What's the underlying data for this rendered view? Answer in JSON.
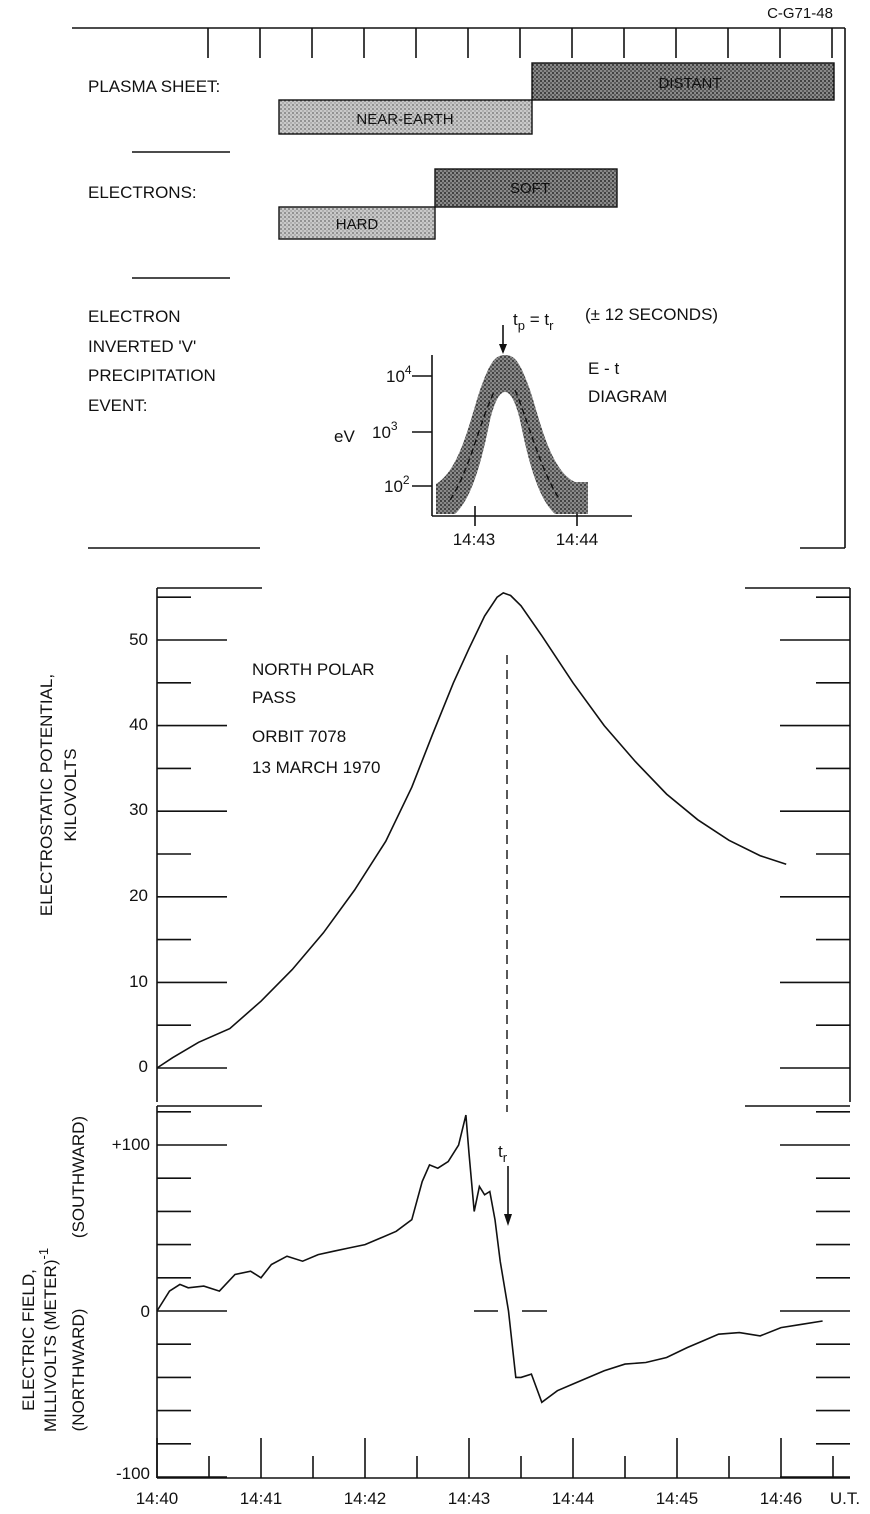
{
  "figure_id": "C-G71-48",
  "top_panel": {
    "plasma_sheet": {
      "label": "PLASMA SHEET:",
      "near": "NEAR-EARTH",
      "distant": "DISTANT"
    },
    "electrons": {
      "label": "ELECTRONS:",
      "hard": "HARD",
      "soft": "SOFT"
    },
    "event": {
      "label_lines": [
        "ELECTRON",
        "INVERTED 'V'",
        "PRECIPITATION",
        "EVENT:"
      ],
      "tp_note": "(± 12 SECONDS)",
      "et_lines": [
        "E - t",
        "DIAGRAM"
      ],
      "ylabel": "eV",
      "yticks": [
        "10",
        "10",
        "10"
      ],
      "yexps": [
        "4",
        "3",
        "2"
      ],
      "xticks": [
        "14:43",
        "14:44"
      ]
    }
  },
  "annotation": {
    "lines": [
      "NORTH POLAR",
      "PASS",
      "ORBIT  7078",
      "13  MARCH  1970"
    ]
  },
  "chart_data": [
    {
      "type": "line",
      "title": "",
      "xlabel": "",
      "ylabel": "ELECTROSTATIC POTENTIAL, KILOVOLTS",
      "ylim": [
        0,
        56
      ],
      "yticks": [
        "0",
        "10",
        "20",
        "30",
        "40",
        "50"
      ],
      "x": [
        0,
        0.15,
        0.4,
        0.7,
        1.0,
        1.3,
        1.6,
        1.9,
        2.2,
        2.45,
        2.65,
        2.85,
        3.0,
        3.15,
        3.27,
        3.33,
        3.4,
        3.5,
        3.7,
        4.0,
        4.3,
        4.6,
        4.9,
        5.2,
        5.5,
        5.8,
        6.05
      ],
      "values": [
        0,
        1.2,
        3.0,
        4.6,
        7.8,
        11.5,
        15.8,
        20.8,
        26.5,
        32.8,
        39.0,
        45.0,
        49.0,
        52.8,
        55.0,
        55.5,
        55.2,
        54.0,
        50.5,
        45.0,
        40.0,
        35.8,
        32.0,
        29.0,
        26.6,
        24.8,
        23.8
      ],
      "peak_time_label": "t_p = t_r"
    },
    {
      "type": "line",
      "title": "",
      "xlabel": "",
      "ylabel": "ELECTRIC FIELD, MILLIVOLTS (METER)-1",
      "ylabel_sides": [
        "(NORTHWARD)",
        "(SOUTHWARD)"
      ],
      "ylim": [
        -100,
        120
      ],
      "yticks": [
        "-100",
        "0",
        "+100"
      ],
      "x": [
        0,
        0.12,
        0.22,
        0.3,
        0.45,
        0.6,
        0.75,
        0.9,
        1.0,
        1.1,
        1.25,
        1.4,
        1.55,
        1.7,
        1.85,
        2.0,
        2.15,
        2.3,
        2.45,
        2.55,
        2.62,
        2.7,
        2.8,
        2.9,
        2.97,
        3.0,
        3.05,
        3.1,
        3.15,
        3.2,
        3.25,
        3.3,
        3.38,
        3.45,
        3.5,
        3.6,
        3.7,
        3.85,
        4.0,
        4.15,
        4.3,
        4.5,
        4.7,
        4.9,
        5.1,
        5.25,
        5.4,
        5.6,
        5.8,
        6.0,
        6.2,
        6.4
      ],
      "values": [
        0,
        12,
        16,
        14,
        15,
        12,
        22,
        24,
        20,
        28,
        33,
        30,
        34,
        36,
        38,
        40,
        44,
        48,
        55,
        78,
        88,
        86,
        90,
        100,
        118,
        95,
        60,
        75,
        70,
        72,
        55,
        30,
        0,
        -40,
        -40,
        -38,
        -55,
        -48,
        -44,
        -40,
        -36,
        -32,
        -31,
        -28,
        -22,
        -18,
        -14,
        -13,
        -15,
        -10,
        -8,
        -6
      ],
      "dash_value": 0,
      "marker_label": "t_r"
    }
  ],
  "xaxis": {
    "ticks": [
      "14:40",
      "14:41",
      "14:42",
      "14:43",
      "14:44",
      "14:45",
      "14:46"
    ],
    "unit": "U.T."
  }
}
